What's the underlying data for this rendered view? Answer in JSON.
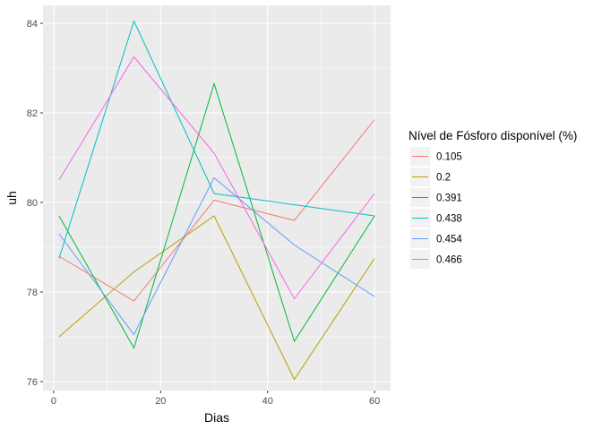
{
  "chart_data": {
    "type": "line",
    "title": "",
    "xlabel": "Dias",
    "ylabel": "uh",
    "xlim": [
      -2,
      63
    ],
    "ylim": [
      75.8,
      84.4
    ],
    "x_ticks": [
      0,
      20,
      40,
      60
    ],
    "y_ticks": [
      76,
      78,
      80,
      82,
      84
    ],
    "x_tick_labels": [
      "0",
      "20",
      "40",
      "60"
    ],
    "y_tick_labels": [
      "76",
      "78",
      "80",
      "82",
      "84"
    ],
    "grid": true,
    "legend_position": "right",
    "legend_title": "Nível de Fósforo disponível (%)",
    "x": [
      1,
      15,
      30,
      45,
      60
    ],
    "series": [
      {
        "name": "0.105",
        "color": "#F8766D",
        "values": [
          78.8,
          77.8,
          80.05,
          79.6,
          81.85
        ]
      },
      {
        "name": "0.2",
        "color": "#B79F00",
        "values": [
          77.0,
          78.45,
          79.7,
          76.05,
          78.75
        ]
      },
      {
        "name": "0.391",
        "color": "#00BA38",
        "values": [
          79.7,
          76.75,
          82.65,
          76.9,
          79.7
        ]
      },
      {
        "name": "0.438",
        "color": "#00BFC4",
        "values": [
          78.75,
          84.05,
          80.2,
          79.95,
          79.7
        ]
      },
      {
        "name": "0.454",
        "color": "#619CFF",
        "values": [
          79.3,
          77.05,
          80.55,
          79.05,
          77.9
        ]
      },
      {
        "name": "0.466",
        "color": "#F564E3",
        "values": [
          80.5,
          83.25,
          81.1,
          77.85,
          80.2
        ]
      }
    ]
  }
}
